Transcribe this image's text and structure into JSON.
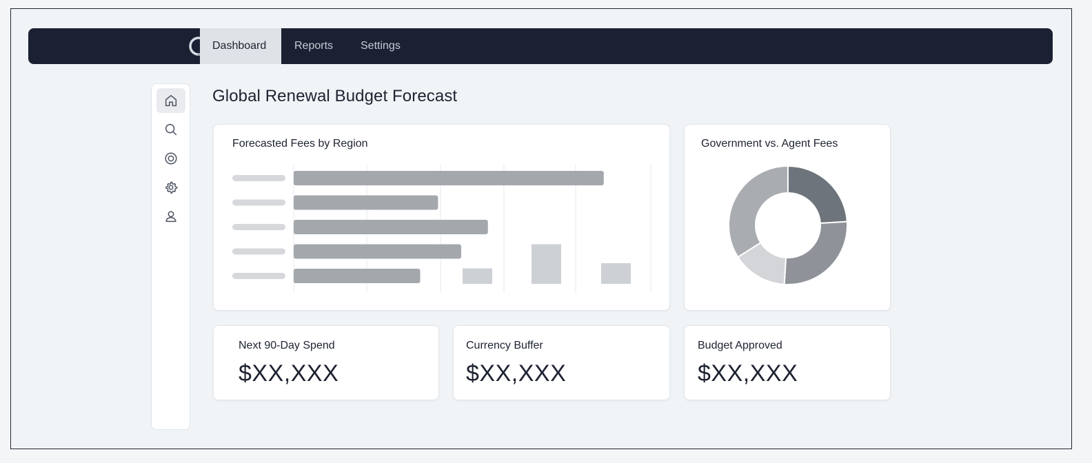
{
  "nav": {
    "tabs": [
      {
        "label": "Dashboard",
        "active": true
      },
      {
        "label": "Reports",
        "active": false
      },
      {
        "label": "Settings",
        "active": false
      }
    ]
  },
  "sidebar": {
    "items": [
      {
        "icon": "home-icon",
        "active": true
      },
      {
        "icon": "search-icon",
        "active": false
      },
      {
        "icon": "target-icon",
        "active": false
      },
      {
        "icon": "gear-icon",
        "active": false
      },
      {
        "icon": "user-icon",
        "active": false
      }
    ]
  },
  "page": {
    "title": "Global Renewal Budget Forecast"
  },
  "bar_card": {
    "title": "Forecasted Fees by Region"
  },
  "donut_card": {
    "title": "Government vs. Agent Fees"
  },
  "kpis": [
    {
      "label": "Next 90-Day Spend",
      "value": "$XX,XXX"
    },
    {
      "label": "Currency Buffer",
      "value": "$XX,XXX"
    },
    {
      "label": "Budget Approved",
      "value": "$XX,XXX"
    }
  ],
  "colors": {
    "navbar": "#1b2133",
    "bar": "#a4a8ad",
    "bar_light": "#cdd0d4",
    "donut_dark": "#6e747b",
    "donut_mid": "#8f9399",
    "donut_light": "#d3d5d8",
    "donut_gray": "#a9acb0"
  },
  "chart_data": [
    {
      "type": "bar",
      "orientation": "horizontal",
      "title": "Forecasted Fees by Region",
      "categories": [
        "",
        "",
        "",
        "",
        ""
      ],
      "values": [
        87,
        40.5,
        54.5,
        47,
        35.5
      ],
      "xlim": [
        0,
        100
      ],
      "grid": true
    },
    {
      "type": "bar",
      "orientation": "vertical",
      "values": [
        4.5,
        11.5,
        6
      ],
      "ylim": [
        0,
        20
      ]
    },
    {
      "type": "pie",
      "donut": true,
      "title": "Government vs. Agent Fees",
      "values": [
        24,
        27,
        15,
        34
      ]
    }
  ]
}
